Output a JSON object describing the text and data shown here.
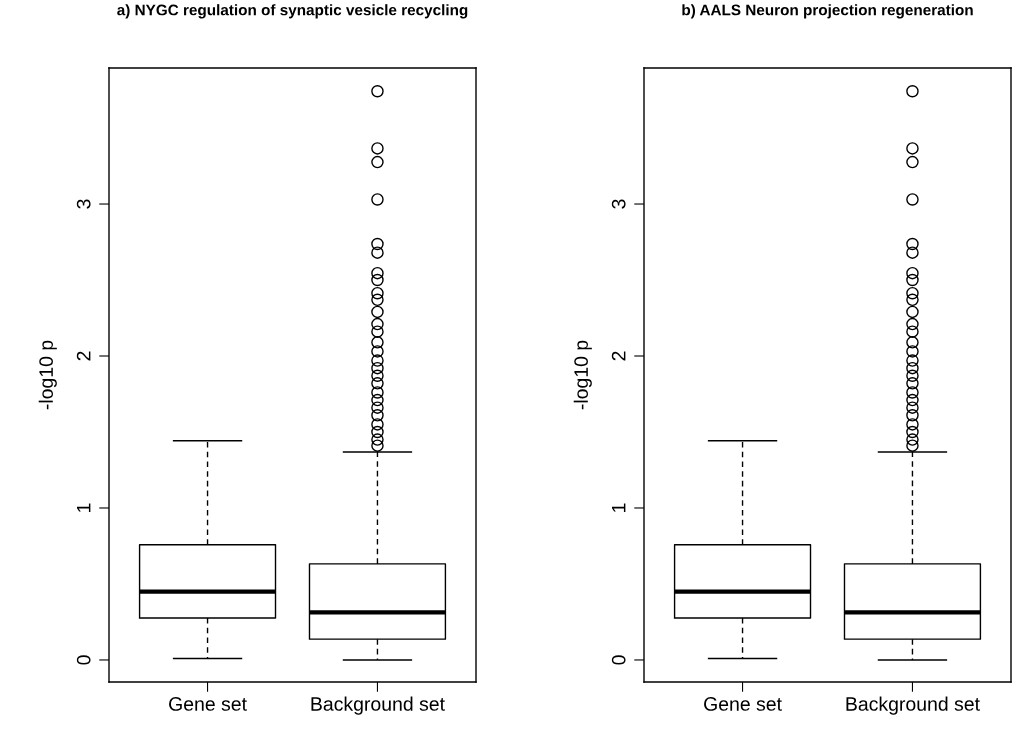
{
  "chart_data": [
    {
      "type": "box",
      "title": "a) NYGC regulation of synaptic vesicle recycling",
      "ylabel": "-log10 p",
      "categories": [
        "Gene set",
        "Background set"
      ],
      "ylim": [
        -0.145,
        3.895
      ],
      "yticks": [
        0,
        1,
        2,
        3
      ],
      "grid": false,
      "legend": false,
      "boxes": [
        {
          "low": 0.01,
          "q1": 0.276,
          "median": 0.45,
          "q3": 0.758,
          "high": 1.442
        },
        {
          "low": 0.0,
          "q1": 0.137,
          "median": 0.313,
          "q3": 0.632,
          "high": 1.368,
          "outliers": [
            3.742,
            3.366,
            3.276,
            3.03,
            2.737,
            2.68,
            2.545,
            2.5,
            2.413,
            2.37,
            2.29,
            2.21,
            2.16,
            2.09,
            2.03,
            1.97,
            1.92,
            1.87,
            1.82,
            1.76,
            1.71,
            1.66,
            1.61,
            1.55,
            1.5,
            1.45,
            1.41
          ]
        }
      ]
    },
    {
      "type": "box",
      "title": "b) AALS Neuron projection regeneration",
      "ylabel": "-log10 p",
      "categories": [
        "Gene set",
        "Background set"
      ],
      "ylim": [
        -0.145,
        3.895
      ],
      "yticks": [
        0,
        1,
        2,
        3
      ],
      "grid": false,
      "legend": false,
      "boxes": [
        {
          "low": 0.01,
          "q1": 0.276,
          "median": 0.45,
          "q3": 0.758,
          "high": 1.442
        },
        {
          "low": 0.0,
          "q1": 0.137,
          "median": 0.313,
          "q3": 0.632,
          "high": 1.368,
          "outliers": [
            3.742,
            3.366,
            3.276,
            3.03,
            2.737,
            2.68,
            2.545,
            2.5,
            2.413,
            2.37,
            2.29,
            2.21,
            2.16,
            2.09,
            2.03,
            1.97,
            1.92,
            1.87,
            1.82,
            1.76,
            1.71,
            1.66,
            1.61,
            1.55,
            1.5,
            1.45,
            1.41
          ]
        }
      ]
    }
  ]
}
